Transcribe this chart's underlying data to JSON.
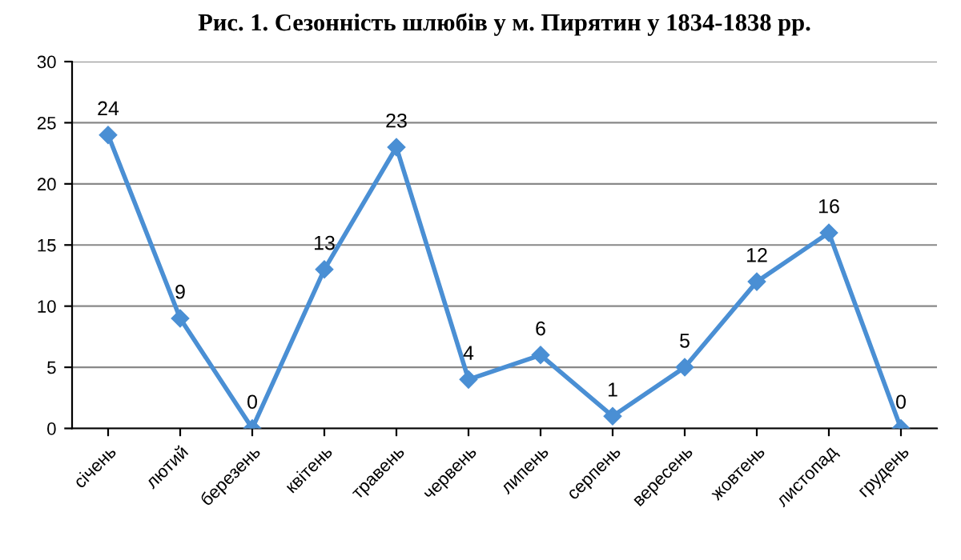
{
  "chart_data": {
    "type": "line",
    "title": "Рис. 1. Сезонність шлюбів у м. Пирятин у 1834-1838 рр.",
    "categories": [
      "січень",
      "лютий",
      "березень",
      "квітень",
      "травень",
      "червень",
      "липень",
      "серпень",
      "вересень",
      "жовтень",
      "листопад",
      "грудень"
    ],
    "values": [
      24,
      9,
      0,
      13,
      23,
      4,
      6,
      1,
      5,
      12,
      16,
      0
    ],
    "color": "#4a8fd4",
    "marker": "diamond",
    "line_style": "solid",
    "ylim": [
      0,
      30
    ],
    "yticks": [
      0,
      5,
      10,
      15,
      20,
      25,
      30
    ],
    "grid": "y",
    "data_labels": true
  }
}
